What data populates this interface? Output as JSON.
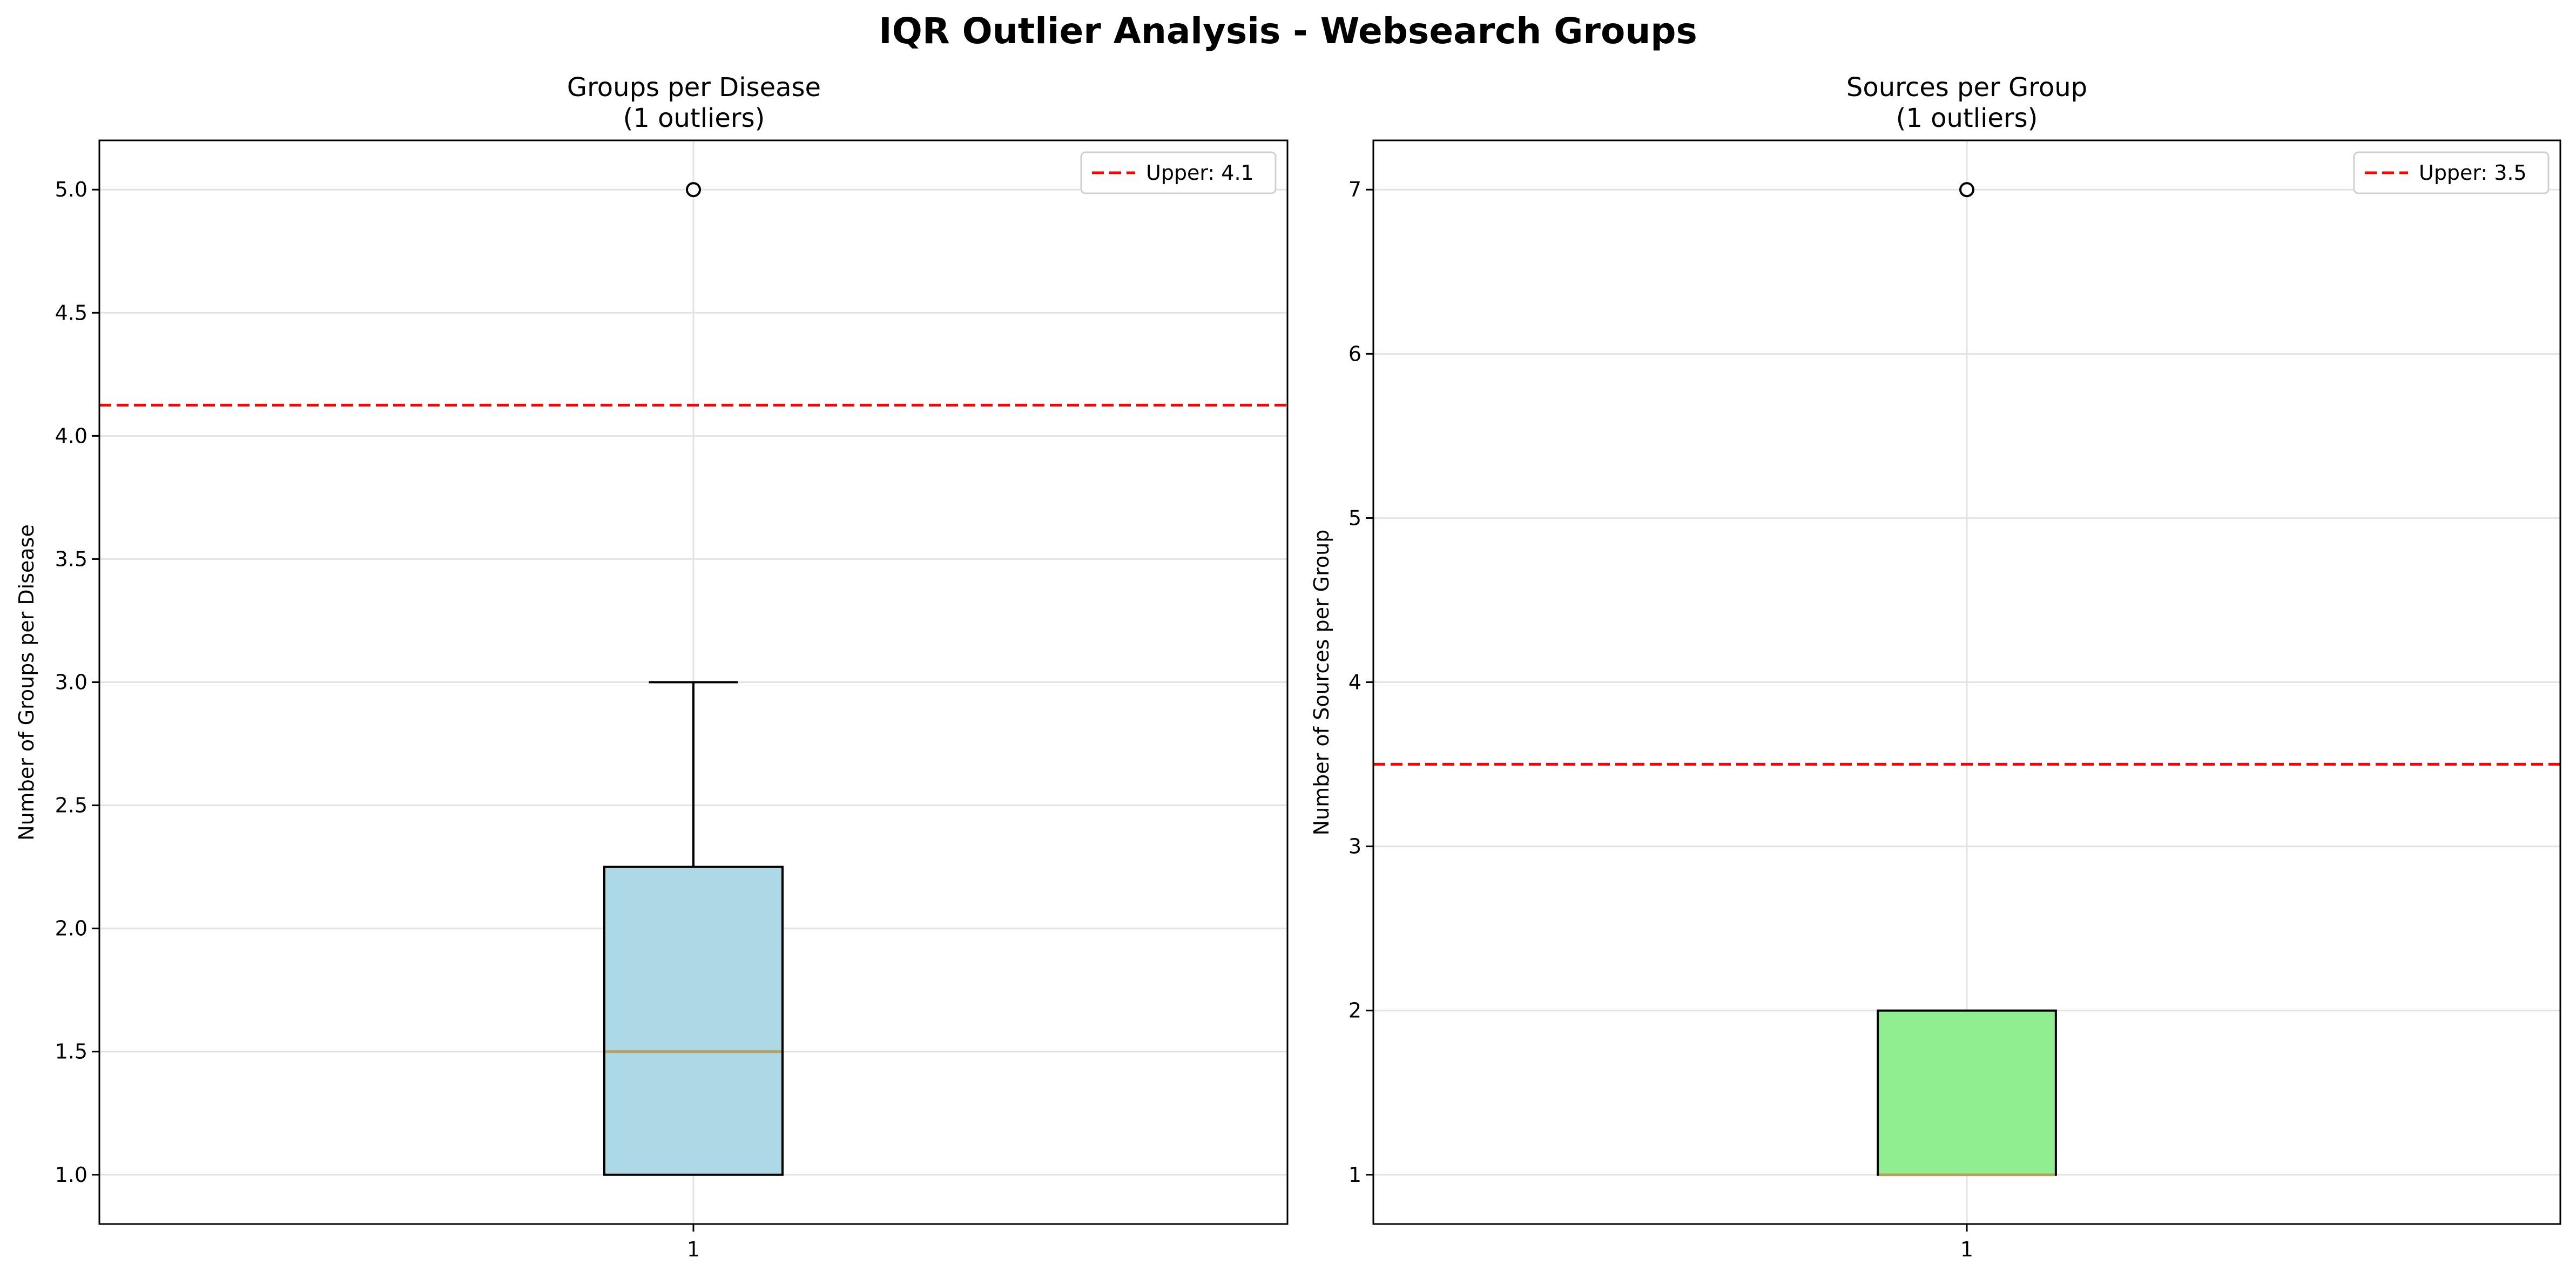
{
  "figure_title": "IQR Outlier Analysis - Websearch Groups",
  "chart_data": [
    {
      "type": "boxplot",
      "title": "Groups per Disease",
      "subtitle": "(1 outliers)",
      "xlabel": "",
      "ylabel": "Number of Groups per Disease",
      "categories": [
        "1"
      ],
      "ylim": [
        0.8,
        5.2
      ],
      "yticks": [
        1.0,
        1.5,
        2.0,
        2.5,
        3.0,
        3.5,
        4.0,
        4.5,
        5.0
      ],
      "ytick_labels": [
        "1.0",
        "1.5",
        "2.0",
        "2.5",
        "3.0",
        "3.5",
        "4.0",
        "4.5",
        "5.0"
      ],
      "box": {
        "whisker_low": 1.0,
        "q1": 1.0,
        "median": 1.5,
        "q3": 2.25,
        "whisker_high": 3.0
      },
      "outliers": [
        5.0
      ],
      "upper_bound": 4.125,
      "legend_label": "Upper: 4.1",
      "legend_loc": "upper right",
      "grid": true,
      "colors": {
        "box_fill": "#add8e6",
        "median": "#b8a060",
        "threshold": "#ff0000"
      }
    },
    {
      "type": "boxplot",
      "title": "Sources per Group",
      "subtitle": "(1 outliers)",
      "xlabel": "",
      "ylabel": "Number of Sources per Group",
      "categories": [
        "1"
      ],
      "ylim": [
        0.7,
        7.3
      ],
      "yticks": [
        1,
        2,
        3,
        4,
        5,
        6,
        7
      ],
      "ytick_labels": [
        "1",
        "2",
        "3",
        "4",
        "5",
        "6",
        "7"
      ],
      "box": {
        "whisker_low": 1,
        "q1": 1,
        "median": 1,
        "q3": 2,
        "whisker_high": 2
      },
      "outliers": [
        7
      ],
      "upper_bound": 3.5,
      "legend_label": "Upper: 3.5",
      "legend_loc": "upper right",
      "grid": true,
      "colors": {
        "box_fill": "#90ee90",
        "median": "#b8a060",
        "threshold": "#ff0000"
      }
    }
  ]
}
